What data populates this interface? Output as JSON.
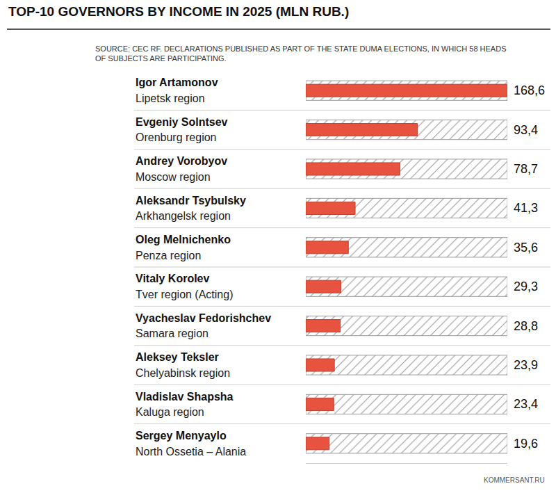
{
  "chart_data": {
    "type": "bar",
    "orientation": "horizontal",
    "title": "TOP-10 GOVERNORS BY INCOME IN 2025 (MLN RUB.)",
    "subtitle": "SOURCE: CEC RF. DECLARATIONS PUBLISHED AS PART OF THE STATE DUMA ELECTIONS, IN WHICH 58 HEADS OF SUBJECTS ARE PARTICIPATING.",
    "footer": "KOMMERSANT.RU",
    "categories": [
      "Igor Artamonov",
      "Evgeniy Solntsev",
      "Andrey Vorobyov",
      "Aleksandr Tsybulsky",
      "Oleg Melnichenko",
      "Vitaly Korolev",
      "Vyacheslav Fedorishchev",
      "Aleksey Teksler",
      "Vladislav Shapsha",
      "Sergey Menyaylo"
    ],
    "regions": [
      "Lipetsk region",
      "Orenburg region",
      "Moscow region",
      "Arkhangelsk region",
      "Penza region",
      "Tver region (Acting)",
      "Samara region",
      "Chelyabinsk region",
      "Kaluga region",
      "North Ossetia – Alania"
    ],
    "values": [
      168.6,
      93.4,
      78.7,
      41.3,
      35.6,
      29.3,
      28.8,
      23.9,
      23.4,
      19.6
    ],
    "value_labels": [
      "168,6",
      "93,4",
      "78,7",
      "41,3",
      "35,6",
      "29,3",
      "28,8",
      "23,9",
      "23,4",
      "19,6"
    ],
    "data_labels": true,
    "color": "#e8533f",
    "xlim": [
      0,
      168.6
    ],
    "grid": false
  }
}
